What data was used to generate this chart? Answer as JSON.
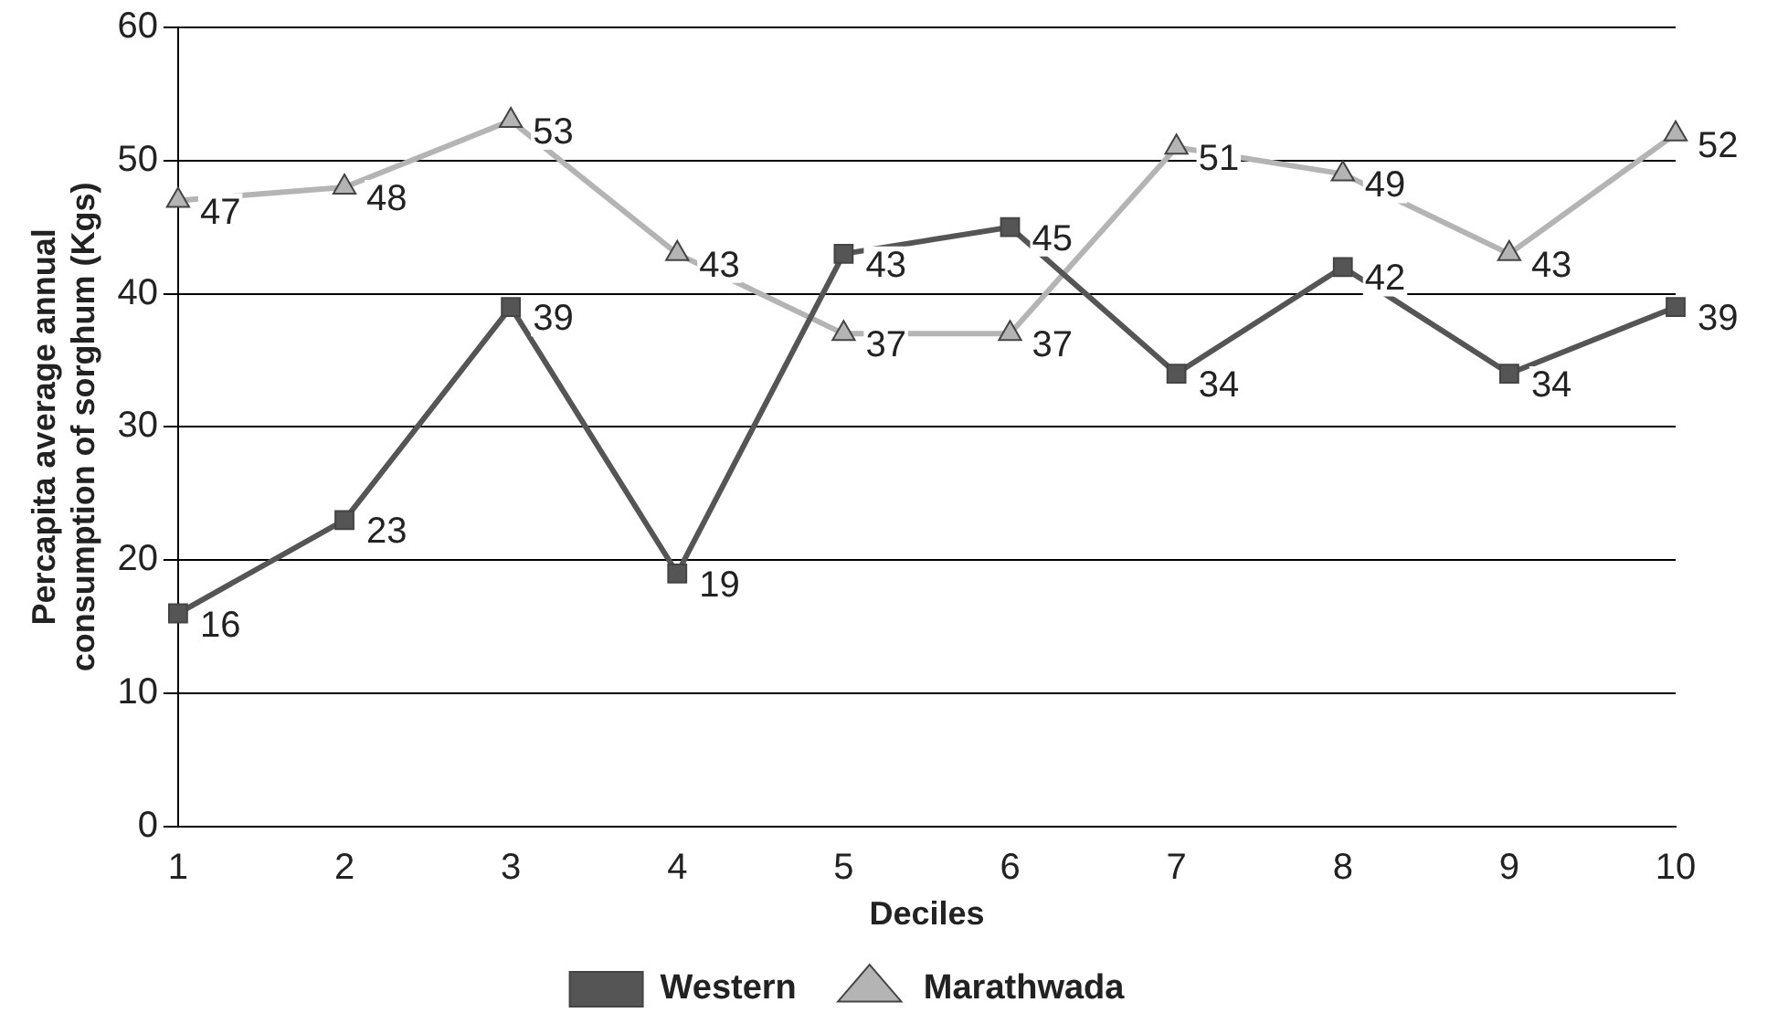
{
  "chart_data": {
    "type": "line",
    "xlabel": "Deciles",
    "ylabel": "Percapita average annual consumption of sorghum (Kgs)",
    "categories": [
      "1",
      "2",
      "3",
      "4",
      "5",
      "6",
      "7",
      "8",
      "9",
      "10"
    ],
    "series": [
      {
        "name": "Western",
        "color": "#555555",
        "marker": "square",
        "values": [
          16,
          23,
          39,
          19,
          43,
          45,
          34,
          42,
          34,
          39
        ]
      },
      {
        "name": "Marathwada",
        "color": "#b4b4b4",
        "marker": "triangle",
        "values": [
          47,
          48,
          53,
          43,
          37,
          37,
          51,
          49,
          43,
          52
        ]
      }
    ],
    "ylim": [
      0,
      60
    ],
    "yticks": [
      0,
      10,
      20,
      30,
      40,
      50,
      60
    ],
    "grid": "y",
    "legend": "bottom",
    "data_labels": true
  }
}
